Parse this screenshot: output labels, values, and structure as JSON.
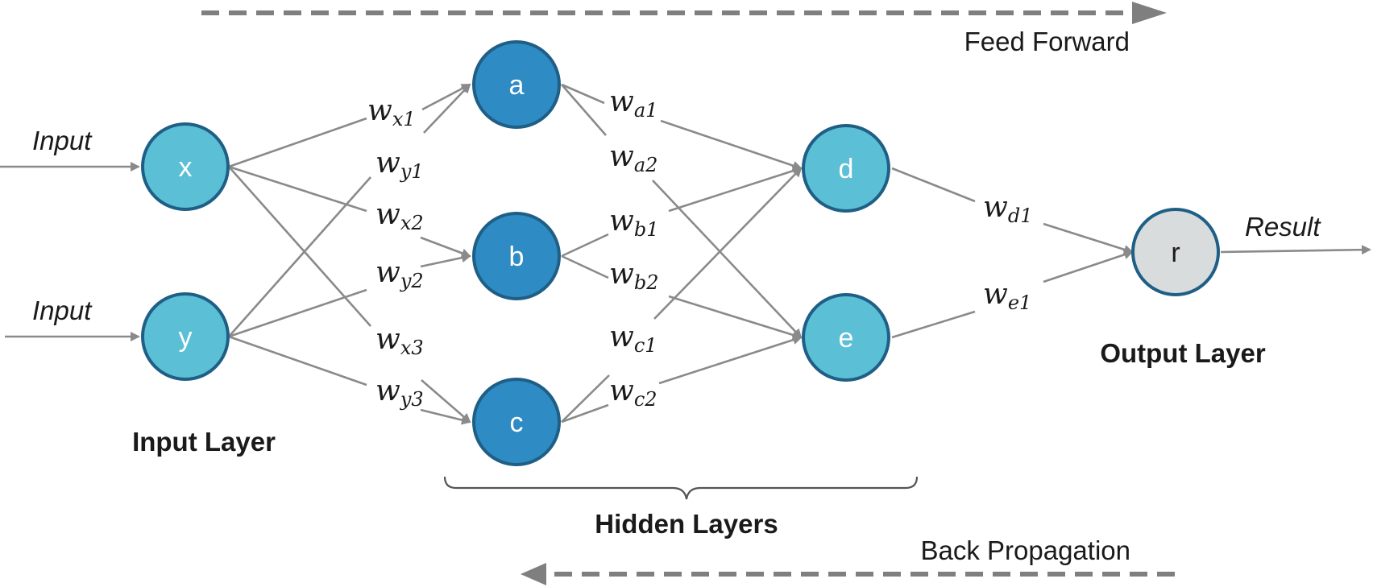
{
  "arrows": {
    "feed_forward": "Feed Forward",
    "back_propagation": "Back Propagation"
  },
  "io": {
    "input_x": "Input",
    "input_y": "Input",
    "result": "Result"
  },
  "layers": {
    "input": "Input Layer",
    "hidden": "Hidden Layers",
    "output": "Output Layer"
  },
  "nodes": {
    "x": "x",
    "y": "y",
    "a": "a",
    "b": "b",
    "c": "c",
    "d": "d",
    "e": "e",
    "r": "r"
  },
  "weights": {
    "wx1": {
      "base": "w",
      "sub": "x1"
    },
    "wy1": {
      "base": "w",
      "sub": "y1"
    },
    "wx2": {
      "base": "w",
      "sub": "x2"
    },
    "wy2": {
      "base": "w",
      "sub": "y2"
    },
    "wx3": {
      "base": "w",
      "sub": "x3"
    },
    "wy3": {
      "base": "w",
      "sub": "y3"
    },
    "wa1": {
      "base": "w",
      "sub": "a1"
    },
    "wa2": {
      "base": "w",
      "sub": "a2"
    },
    "wb1": {
      "base": "w",
      "sub": "b1"
    },
    "wb2": {
      "base": "w",
      "sub": "b2"
    },
    "wc1": {
      "base": "w",
      "sub": "c1"
    },
    "wc2": {
      "base": "w",
      "sub": "c2"
    },
    "wd1": {
      "base": "w",
      "sub": "d1"
    },
    "we1": {
      "base": "w",
      "sub": "e1"
    }
  },
  "colors": {
    "input_node": "#5bbfd6",
    "hidden_dark_node": "#2e8bc4",
    "hidden_light_node": "#5bbfd6",
    "output_node": "#d9dcdc",
    "node_stroke": "#1f5f86",
    "edge": "#8a8a8a",
    "dashed_arrow": "#7f7f7f"
  }
}
